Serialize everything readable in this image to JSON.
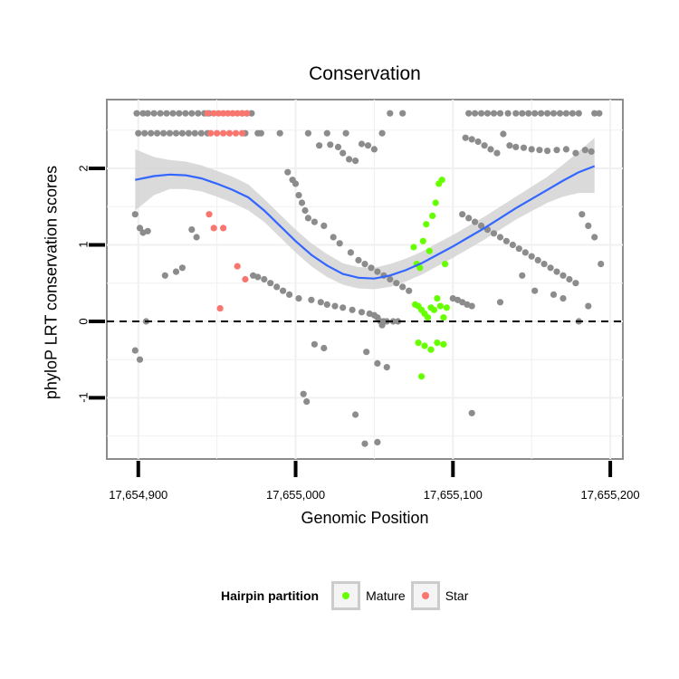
{
  "chart_data": {
    "type": "scatter",
    "title": "Conservation",
    "xlabel": "Genomic Position",
    "ylabel": "phyloP LRT conservation scores",
    "xlim": [
      17654880,
      17655208
    ],
    "ylim": [
      -1.8,
      2.9
    ],
    "x_ticks": [
      17654900,
      17655000,
      17655100,
      17655200
    ],
    "x_tick_labels": [
      "17,654,900",
      "17,655,000",
      "17,655,100",
      "17,655,200"
    ],
    "y_ticks": [
      -1,
      0,
      1,
      2
    ],
    "y_tick_labels": [
      "-1",
      "0",
      "1",
      "2"
    ],
    "reference_line": {
      "y": 0,
      "style": "dashed"
    },
    "grid": true,
    "legend": {
      "title": "Hairpin partition",
      "placement": "bottom",
      "entries": [
        {
          "label": "Mature",
          "color": "#66ff00"
        },
        {
          "label": "Star",
          "color": "#f8766d"
        }
      ]
    },
    "colors": {
      "other": "#8c8c8c",
      "Mature": "#66ff00",
      "Star": "#f8766d",
      "smooth": "#3366ff",
      "ribbon": "#d3d3d3"
    },
    "smooth": {
      "x": [
        17654898,
        17654910,
        17654920,
        17654930,
        17654940,
        17654950,
        17654960,
        17654970,
        17654980,
        17654990,
        17655000,
        17655010,
        17655020,
        17655030,
        17655040,
        17655050,
        17655060,
        17655070,
        17655080,
        17655090,
        17655100,
        17655110,
        17655120,
        17655130,
        17655140,
        17655150,
        17655160,
        17655170,
        17655180,
        17655190
      ],
      "y": [
        1.85,
        1.9,
        1.92,
        1.91,
        1.87,
        1.8,
        1.72,
        1.62,
        1.45,
        1.25,
        1.05,
        0.87,
        0.73,
        0.62,
        0.57,
        0.56,
        0.6,
        0.67,
        0.76,
        0.87,
        0.98,
        1.1,
        1.22,
        1.35,
        1.48,
        1.6,
        1.72,
        1.84,
        1.95,
        2.03
      ],
      "lower": [
        1.45,
        1.65,
        1.73,
        1.73,
        1.7,
        1.63,
        1.55,
        1.45,
        1.3,
        1.1,
        0.9,
        0.72,
        0.58,
        0.48,
        0.43,
        0.42,
        0.45,
        0.52,
        0.61,
        0.72,
        0.83,
        0.95,
        1.07,
        1.2,
        1.33,
        1.44,
        1.55,
        1.63,
        1.68,
        1.68
      ],
      "upper": [
        2.25,
        2.15,
        2.11,
        2.09,
        2.04,
        1.97,
        1.89,
        1.79,
        1.6,
        1.4,
        1.2,
        1.02,
        0.88,
        0.76,
        0.71,
        0.7,
        0.75,
        0.82,
        0.91,
        1.02,
        1.13,
        1.25,
        1.37,
        1.5,
        1.63,
        1.76,
        1.89,
        2.05,
        2.22,
        2.4
      ]
    },
    "series": [
      {
        "category": "other",
        "x": [
          17654899,
          17654903,
          17654906,
          17654910,
          17654914,
          17654918,
          17654922,
          17654926,
          17654930,
          17654934,
          17654938,
          17654942,
          17654945,
          17654966,
          17654969,
          17654972,
          17654900,
          17654904,
          17654908,
          17654912,
          17654916,
          17654920,
          17654924,
          17654928,
          17654932,
          17654936,
          17654940,
          17654944,
          17654968,
          17654976,
          17654978,
          17654990,
          17655008,
          17655020,
          17655032,
          17655055,
          17655060,
          17655068,
          17655110,
          17655114,
          17655118,
          17655122,
          17655126,
          17655130,
          17655135,
          17655140,
          17655144,
          17655148,
          17655152,
          17655156,
          17655160,
          17655164,
          17655168,
          17655172,
          17655176,
          17655180,
          17655190,
          17655193,
          17655015,
          17655022,
          17655027,
          17655030,
          17655034,
          17655038,
          17655042,
          17655046,
          17655050,
          17655108,
          17655112,
          17655116,
          17655120,
          17655124,
          17655128,
          17655132,
          17655136,
          17655140,
          17655145,
          17655150,
          17655155,
          17655160,
          17655166,
          17655172,
          17655178,
          17655184,
          17655188,
          17654995,
          17654998,
          17655000,
          17655002,
          17655004,
          17655006,
          17655008,
          17655012,
          17655018,
          17655024,
          17655028,
          17655035,
          17655040,
          17655044,
          17655048,
          17655052,
          17655056,
          17655060,
          17655064,
          17655068,
          17655072,
          17655106,
          17655110,
          17655114,
          17655118,
          17655122,
          17655126,
          17655130,
          17655134,
          17655138,
          17655142,
          17655146,
          17655150,
          17655154,
          17655158,
          17655162,
          17655166,
          17655170,
          17655174,
          17655178,
          17655182,
          17655186,
          17655190,
          17655194,
          17654898,
          17654901,
          17654903,
          17654906,
          17654917,
          17654924,
          17654928,
          17654934,
          17654937,
          17654973,
          17654976,
          17654980,
          17654984,
          17654988,
          17654992,
          17654996,
          17655002,
          17655010,
          17655016,
          17655020,
          17655025,
          17655030,
          17655036,
          17655042,
          17655047,
          17655050,
          17655052,
          17655054,
          17655056,
          17655058,
          17655062,
          17655065,
          17655100,
          17655103,
          17655106,
          17655109,
          17655112,
          17655130,
          17655144,
          17655152,
          17655164,
          17655170,
          17655180,
          17655186,
          17655005,
          17655012,
          17655018,
          17655045,
          17655052,
          17655058,
          17654898,
          17654901,
          17654905,
          17655007,
          17655038,
          17655044,
          17655052,
          17655055,
          17655112
        ],
        "y": [
          2.72,
          2.72,
          2.72,
          2.72,
          2.72,
          2.72,
          2.72,
          2.72,
          2.72,
          2.72,
          2.72,
          2.72,
          2.72,
          2.72,
          2.72,
          2.72,
          2.46,
          2.46,
          2.46,
          2.46,
          2.46,
          2.46,
          2.46,
          2.46,
          2.46,
          2.46,
          2.46,
          2.46,
          2.46,
          2.46,
          2.46,
          2.46,
          2.46,
          2.46,
          2.46,
          2.46,
          2.72,
          2.72,
          2.72,
          2.72,
          2.72,
          2.72,
          2.72,
          2.72,
          2.72,
          2.72,
          2.72,
          2.72,
          2.72,
          2.72,
          2.72,
          2.72,
          2.72,
          2.72,
          2.72,
          2.72,
          2.72,
          2.72,
          2.3,
          2.31,
          2.28,
          2.2,
          2.12,
          2.1,
          2.32,
          2.3,
          2.25,
          2.4,
          2.38,
          2.35,
          2.3,
          2.25,
          2.2,
          2.45,
          2.3,
          2.28,
          2.27,
          2.25,
          2.24,
          2.23,
          2.24,
          2.25,
          2.2,
          2.24,
          2.22,
          1.95,
          1.85,
          1.8,
          1.65,
          1.55,
          1.45,
          1.35,
          1.3,
          1.25,
          1.1,
          1.02,
          0.9,
          0.8,
          0.75,
          0.7,
          0.65,
          0.6,
          0.55,
          0.5,
          0.45,
          0.4,
          1.4,
          1.35,
          1.3,
          1.25,
          1.2,
          1.15,
          1.1,
          1.05,
          1.0,
          0.95,
          0.9,
          0.85,
          0.8,
          0.75,
          0.7,
          0.65,
          0.6,
          0.55,
          0.5,
          1.4,
          1.25,
          1.1,
          0.75,
          1.4,
          1.22,
          1.16,
          1.18,
          0.6,
          0.65,
          0.7,
          1.2,
          1.1,
          0.6,
          0.58,
          0.55,
          0.5,
          0.45,
          0.4,
          0.35,
          0.3,
          0.28,
          0.25,
          0.22,
          0.2,
          0.18,
          0.15,
          0.12,
          0.1,
          0.08,
          0.05,
          0.0,
          0.0,
          0.0,
          0.0,
          0.0,
          0.3,
          0.28,
          0.25,
          0.22,
          0.2,
          0.25,
          0.6,
          0.4,
          0.35,
          0.3,
          0.0,
          0.2,
          -0.95,
          -0.3,
          -0.35,
          -0.4,
          -0.55,
          -0.6,
          -0.38,
          -0.5,
          0.0,
          -1.05,
          -1.22,
          -1.6,
          -1.58,
          -0.05,
          -1.2
        ],
        "note": ""
      },
      {
        "category": "Mature",
        "x": [
          17655075,
          17655077,
          17655079,
          17655081,
          17655083,
          17655085,
          17655087,
          17655089,
          17655091,
          17655093,
          17655095,
          17655076,
          17655078,
          17655080,
          17655082,
          17655084,
          17655086,
          17655088,
          17655090,
          17655092,
          17655094,
          17655096,
          17655078,
          17655082,
          17655086,
          17655090,
          17655094,
          17655080
        ],
        "y": [
          0.97,
          0.75,
          0.7,
          1.05,
          1.27,
          0.92,
          1.38,
          1.55,
          1.8,
          1.85,
          0.75,
          0.22,
          0.2,
          0.15,
          0.1,
          0.05,
          0.18,
          0.15,
          0.3,
          0.2,
          0.05,
          0.18,
          -0.28,
          -0.32,
          -0.37,
          -0.28,
          -0.3,
          -0.72
        ]
      },
      {
        "category": "Star",
        "x": [
          17654944,
          17654948,
          17654951,
          17654954,
          17654957,
          17654960,
          17654963,
          17654966,
          17654969,
          17654946,
          17654950,
          17654954,
          17654958,
          17654962,
          17654966,
          17654945,
          17654948,
          17654954,
          17654963,
          17654968,
          17654952
        ],
        "y": [
          2.72,
          2.72,
          2.72,
          2.72,
          2.72,
          2.72,
          2.72,
          2.72,
          2.72,
          2.46,
          2.46,
          2.46,
          2.46,
          2.46,
          2.46,
          1.4,
          1.22,
          1.22,
          0.72,
          0.55,
          0.17
        ]
      }
    ]
  }
}
